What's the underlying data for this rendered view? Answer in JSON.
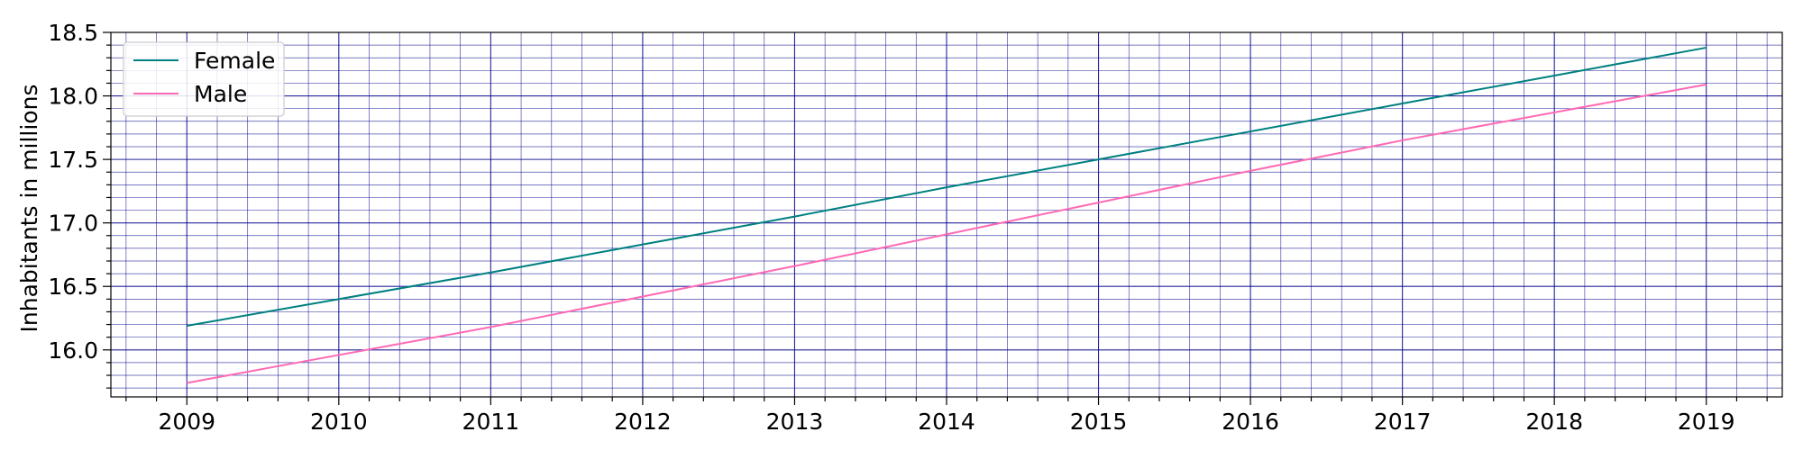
{
  "chart_data": {
    "type": "line",
    "title": "",
    "xlabel": "",
    "ylabel": "Inhabitants in millions",
    "x": [
      2009,
      2010,
      2011,
      2012,
      2013,
      2014,
      2015,
      2016,
      2017,
      2018,
      2019
    ],
    "xlim": [
      2008.5,
      2019.5
    ],
    "ylim": [
      15.63,
      18.5
    ],
    "x_ticks": [
      "2009",
      "2010",
      "2011",
      "2012",
      "2013",
      "2014",
      "2015",
      "2016",
      "2017",
      "2018",
      "2019"
    ],
    "y_ticks": [
      "16.0",
      "16.5",
      "17.0",
      "17.5",
      "18.0",
      "18.5"
    ],
    "grid": true,
    "legend_position": "top-left",
    "series": [
      {
        "name": "Female",
        "color": "#008080",
        "values": [
          16.19,
          16.4,
          16.61,
          16.83,
          17.05,
          17.28,
          17.5,
          17.72,
          17.94,
          18.16,
          18.38
        ]
      },
      {
        "name": "Male",
        "color": "#ff69b4",
        "values": [
          15.74,
          15.96,
          16.18,
          16.42,
          16.66,
          16.91,
          17.16,
          17.41,
          17.65,
          17.87,
          18.09
        ]
      }
    ],
    "grid_color": "#00008b"
  }
}
